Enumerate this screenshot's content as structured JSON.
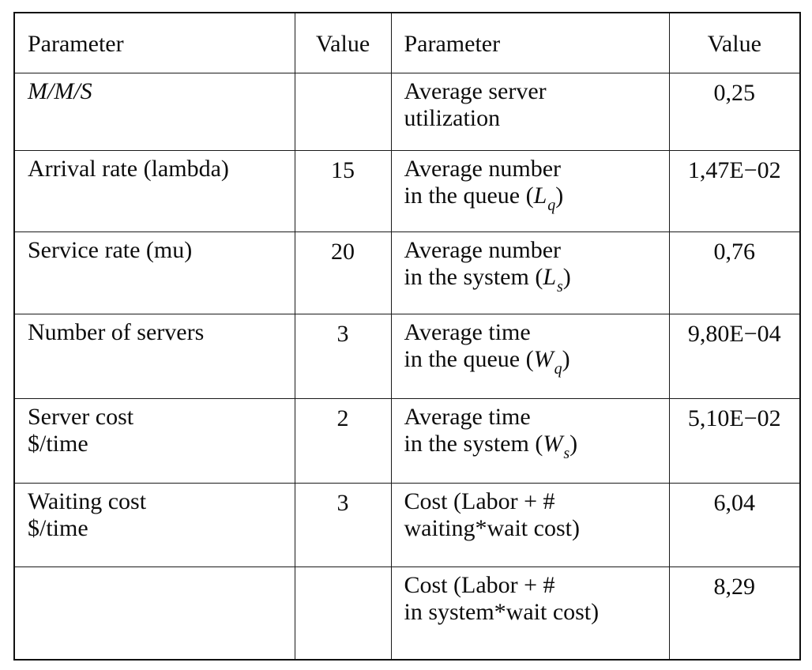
{
  "table": {
    "headers": {
      "left_param": "Parameter",
      "left_value": "Value",
      "right_param": "Parameter",
      "right_value": "Value"
    },
    "rows": [
      {
        "left_param_lines": [
          "M/M/S"
        ],
        "left_value": "",
        "right_param_lines": [
          "Average server",
          "utilization"
        ],
        "right_value": "0,25"
      },
      {
        "left_param_lines": [
          "Arrival rate (lambda)"
        ],
        "left_value": "15",
        "right_param_lines": [
          "Average number",
          "in the queue ("
        ],
        "right_param_symbol": "L",
        "right_param_subscript": "q",
        "right_param_close": ")",
        "right_value": "1,47E−02"
      },
      {
        "left_param_lines": [
          "Service rate (mu)"
        ],
        "left_value": "20",
        "right_param_lines": [
          "Average number",
          "in the system ("
        ],
        "right_param_symbol": "L",
        "right_param_subscript": "s",
        "right_param_close": ")",
        "right_value": "0,76"
      },
      {
        "left_param_lines": [
          "Number of servers"
        ],
        "left_value": "3",
        "right_param_lines": [
          "Average time",
          "in the queue ("
        ],
        "right_param_symbol": "W",
        "right_param_subscript": "q",
        "right_param_close": ")",
        "right_value": "9,80E−04"
      },
      {
        "left_param_lines": [
          "Server cost",
          "$/time"
        ],
        "left_value": "2",
        "right_param_lines": [
          "Average time",
          "in the system ("
        ],
        "right_param_symbol": "W",
        "right_param_subscript": "s",
        "right_param_close": ")",
        "right_value": "5,10E−02"
      },
      {
        "left_param_lines": [
          "Waiting cost",
          "$/time"
        ],
        "left_value": "3",
        "right_param_lines": [
          "Cost (Labor + #",
          "waiting*wait cost)"
        ],
        "right_value": "6,04"
      },
      {
        "left_param_lines": [
          ""
        ],
        "left_value": "",
        "right_param_lines": [
          "Cost (Labor + #",
          "in system*wait cost)"
        ],
        "right_value": "8,29"
      }
    ]
  }
}
